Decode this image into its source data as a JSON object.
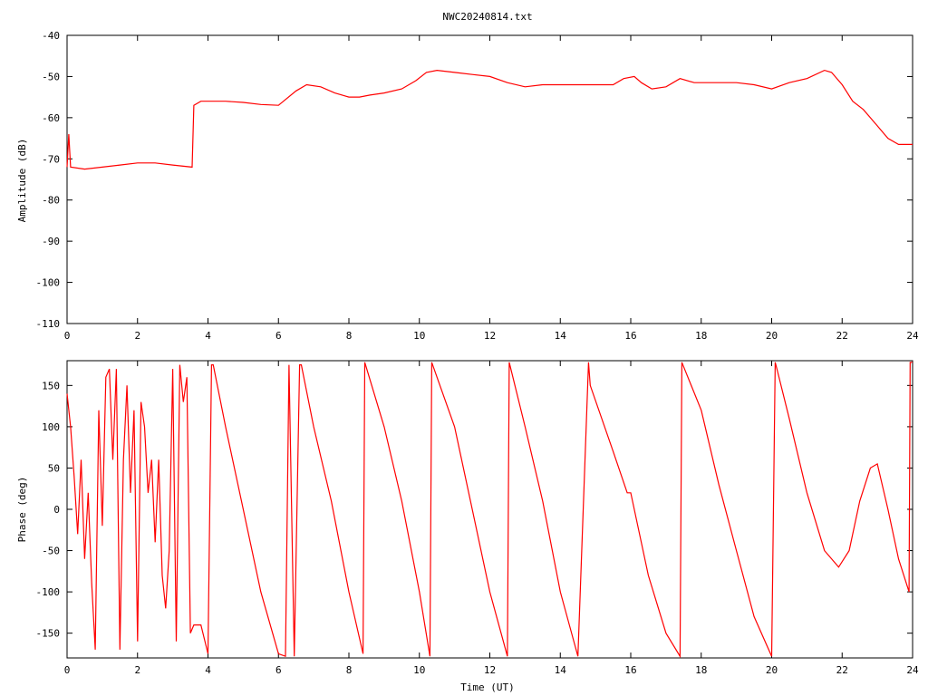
{
  "title": "NWC20240814.txt",
  "colors": {
    "trace": "#ff0000",
    "axis": "#000000",
    "background": "#ffffff"
  },
  "chart_data": [
    {
      "type": "line",
      "ylabel": "Amplitude (dB)",
      "xlabel": "",
      "xlim": [
        0,
        24
      ],
      "ylim": [
        -110,
        -40
      ],
      "x_ticks": [
        "0",
        "2",
        "4",
        "6",
        "8",
        "10",
        "12",
        "14",
        "16",
        "18",
        "20",
        "22",
        "24"
      ],
      "y_ticks": [
        "-40",
        "-50",
        "-60",
        "-70",
        "-80",
        "-90",
        "-100",
        "-110"
      ],
      "series": [
        {
          "x": [
            0,
            0.05,
            0.1,
            0.5,
            1.0,
            1.5,
            2.0,
            2.5,
            3.0,
            3.55,
            3.6,
            3.8,
            4.5,
            5.0,
            5.5,
            6.0,
            6.5,
            6.8,
            7.2,
            7.6,
            8.0,
            8.3,
            8.6,
            9.0,
            9.5,
            9.9,
            10.2,
            10.5,
            11.0,
            11.5,
            12.0,
            12.5,
            13.0,
            13.5,
            14.0,
            14.5,
            15.0,
            15.5,
            15.8,
            16.1,
            16.3,
            16.6,
            17.0,
            17.4,
            17.8,
            18.2,
            18.6,
            19.0,
            19.5,
            20.0,
            20.5,
            21.0,
            21.5,
            21.7,
            22.0,
            22.3,
            22.6,
            23.0,
            23.3,
            23.6,
            24.0
          ],
          "y": [
            -72,
            -64,
            -72,
            -72.5,
            -72,
            -71.5,
            -71,
            -71,
            -71.5,
            -72,
            -57,
            -56,
            -56,
            -56.3,
            -56.8,
            -57,
            -53.5,
            -52,
            -52.5,
            -54,
            -55,
            -55,
            -54.5,
            -54,
            -53,
            -51,
            -49,
            -48.5,
            -49,
            -49.5,
            -50,
            -51.5,
            -52.5,
            -52,
            -52,
            -52,
            -52,
            -52,
            -50.5,
            -50,
            -51.5,
            -53,
            -52.5,
            -50.5,
            -51.5,
            -51.5,
            -51.5,
            -51.5,
            -52,
            -53,
            -51.5,
            -50.5,
            -48.5,
            -49,
            -52,
            -56,
            -58,
            -62,
            -65,
            -66.5,
            -66.5
          ]
        }
      ]
    },
    {
      "type": "line",
      "ylabel": "Phase (deg)",
      "xlabel": "Time (UT)",
      "xlim": [
        0,
        24
      ],
      "ylim": [
        -180,
        180
      ],
      "x_ticks": [
        "0",
        "2",
        "4",
        "6",
        "8",
        "10",
        "12",
        "14",
        "16",
        "18",
        "20",
        "22",
        "24"
      ],
      "y_ticks": [
        "150",
        "100",
        "50",
        "0",
        "-50",
        "-100",
        "-150"
      ],
      "series": [
        {
          "x": [
            0,
            0.1,
            0.2,
            0.3,
            0.4,
            0.5,
            0.6,
            0.7,
            0.8,
            0.9,
            1.0,
            1.1,
            1.2,
            1.3,
            1.4,
            1.5,
            1.6,
            1.7,
            1.8,
            1.9,
            2.0,
            2.1,
            2.2,
            2.3,
            2.4,
            2.5,
            2.6,
            2.7,
            2.8,
            2.9,
            3.0,
            3.1,
            3.2,
            3.3,
            3.4,
            3.5,
            3.6,
            3.8,
            4.0,
            4.1,
            4.15,
            4.5,
            5.0,
            5.5,
            6.0,
            6.2,
            6.3,
            6.45,
            6.6,
            6.65,
            7.0,
            7.5,
            8.0,
            8.4,
            8.45,
            9.0,
            9.5,
            10.0,
            10.3,
            10.35,
            11.0,
            11.5,
            12.0,
            12.5,
            12.55,
            13.0,
            13.5,
            14.0,
            14.5,
            14.8,
            14.85,
            15.5,
            15.9,
            16.0,
            16.5,
            17.0,
            17.4,
            17.45,
            18.0,
            18.5,
            19.0,
            19.5,
            20.0,
            20.1,
            20.15,
            20.5,
            21.0,
            21.5,
            21.9,
            22.2,
            22.5,
            22.8,
            23.0,
            23.3,
            23.6,
            23.9,
            23.93,
            24.0
          ],
          "y": [
            140,
            100,
            40,
            -30,
            60,
            -60,
            20,
            -90,
            -170,
            120,
            -20,
            160,
            170,
            60,
            170,
            -170,
            60,
            150,
            20,
            120,
            -160,
            130,
            100,
            20,
            60,
            -40,
            60,
            -80,
            -120,
            -50,
            170,
            -160,
            175,
            130,
            160,
            -150,
            -140,
            -140,
            -175,
            175,
            175,
            100,
            0,
            -100,
            -175,
            -178,
            175,
            -178,
            175,
            175,
            100,
            10,
            -100,
            -175,
            178,
            100,
            10,
            -100,
            -178,
            178,
            100,
            0,
            -100,
            -178,
            178,
            100,
            10,
            -100,
            -178,
            178,
            150,
            70,
            20,
            20,
            -80,
            -150,
            -178,
            178,
            120,
            30,
            -50,
            -130,
            -178,
            178,
            170,
            110,
            20,
            -50,
            -70,
            -50,
            10,
            50,
            55,
            0,
            -60,
            -100,
            178,
            178
          ]
        }
      ]
    }
  ]
}
